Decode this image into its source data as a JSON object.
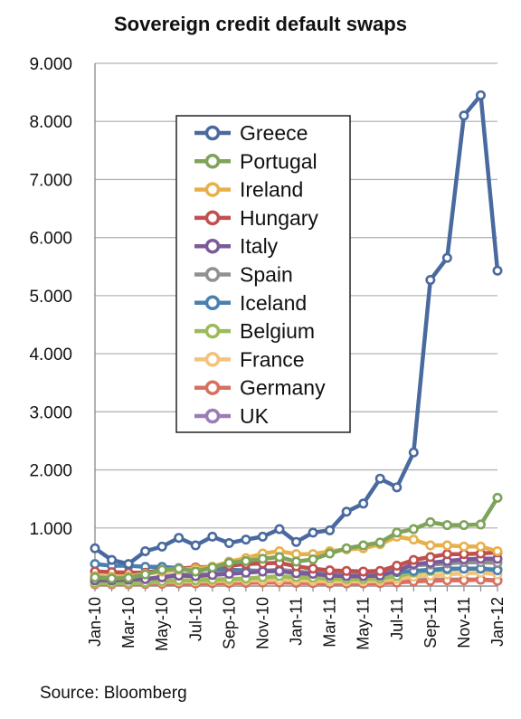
{
  "chart_data": {
    "type": "line",
    "title": "Sovereign credit default swaps",
    "xlabel": "",
    "ylabel": "",
    "source": "Source: Bloomberg",
    "ylim": [
      0,
      9000
    ],
    "yticks": [
      0,
      1000,
      2000,
      3000,
      4000,
      5000,
      6000,
      7000,
      8000,
      9000
    ],
    "ytick_labels": [
      "",
      "1.000",
      "2.000",
      "3.000",
      "4.000",
      "5.000",
      "6.000",
      "7.000",
      "8.000",
      "9.000"
    ],
    "x": [
      "Jan-10",
      "Feb-10",
      "Mar-10",
      "Apr-10",
      "May-10",
      "Jun-10",
      "Jul-10",
      "Aug-10",
      "Sep-10",
      "Oct-10",
      "Nov-10",
      "Dec-10",
      "Jan-11",
      "Feb-11",
      "Mar-11",
      "Apr-11",
      "May-11",
      "Jun-11",
      "Jul-11",
      "Aug-11",
      "Sep-11",
      "Oct-11",
      "Nov-11",
      "Dec-11",
      "Jan-12"
    ],
    "x_tick_labels": [
      "Jan-10",
      "Mar-10",
      "May-10",
      "Jul-10",
      "Sep-10",
      "Nov-10",
      "Jan-11",
      "Mar-11",
      "May-11",
      "Jul-11",
      "Sep-11",
      "Nov-11",
      "Jan-12"
    ],
    "grid": true,
    "legend_position": "top-left",
    "series": [
      {
        "name": "Greece",
        "color": "#4a6a9f",
        "values": [
          650,
          450,
          380,
          600,
          680,
          830,
          700,
          850,
          740,
          800,
          850,
          980,
          760,
          920,
          960,
          1280,
          1420,
          1850,
          1700,
          2300,
          5270,
          5650,
          8100,
          8450,
          5430
        ]
      },
      {
        "name": "Portugal",
        "color": "#7ea35a",
        "values": [
          150,
          130,
          140,
          200,
          280,
          300,
          250,
          320,
          400,
          430,
          470,
          500,
          420,
          460,
          560,
          650,
          700,
          750,
          920,
          980,
          1100,
          1050,
          1050,
          1060,
          1520
        ]
      },
      {
        "name": "Ireland",
        "color": "#e6b04a",
        "values": [
          170,
          160,
          170,
          210,
          250,
          280,
          300,
          330,
          420,
          480,
          560,
          600,
          550,
          550,
          600,
          630,
          650,
          720,
          850,
          800,
          700,
          700,
          680,
          680,
          600
        ]
      },
      {
        "name": "Hungary",
        "color": "#c0504d",
        "values": [
          250,
          240,
          230,
          230,
          280,
          300,
          320,
          330,
          350,
          380,
          390,
          400,
          340,
          300,
          270,
          260,
          250,
          260,
          350,
          450,
          500,
          550,
          550,
          560,
          580
        ]
      },
      {
        "name": "Italy",
        "color": "#7a5a98",
        "values": [
          100,
          100,
          110,
          120,
          150,
          180,
          170,
          190,
          210,
          230,
          250,
          260,
          220,
          210,
          180,
          170,
          170,
          180,
          260,
          380,
          400,
          430,
          460,
          470,
          470
        ]
      },
      {
        "name": "Spain",
        "color": "#909090",
        "values": [
          100,
          100,
          110,
          120,
          160,
          200,
          200,
          210,
          220,
          240,
          260,
          280,
          250,
          230,
          200,
          190,
          190,
          200,
          280,
          360,
          370,
          390,
          410,
          410,
          400
        ]
      },
      {
        "name": "Iceland",
        "color": "#4a7fb0",
        "values": [
          380,
          350,
          350,
          330,
          330,
          310,
          300,
          290,
          280,
          270,
          260,
          250,
          240,
          230,
          220,
          210,
          210,
          220,
          240,
          260,
          280,
          300,
          300,
          300,
          270
        ]
      },
      {
        "name": "Belgium",
        "color": "#9bbb59",
        "values": [
          50,
          50,
          50,
          60,
          80,
          100,
          100,
          110,
          120,
          130,
          150,
          170,
          150,
          140,
          130,
          120,
          120,
          130,
          170,
          230,
          260,
          280,
          300,
          300,
          290
        ]
      },
      {
        "name": "France",
        "color": "#f2c37a",
        "values": [
          50,
          50,
          50,
          60,
          70,
          80,
          80,
          90,
          90,
          100,
          100,
          110,
          100,
          90,
          80,
          80,
          80,
          90,
          120,
          160,
          180,
          200,
          220,
          230,
          200
        ]
      },
      {
        "name": "Germany",
        "color": "#d9705f",
        "values": [
          30,
          30,
          30,
          35,
          40,
          45,
          45,
          50,
          50,
          55,
          60,
          60,
          55,
          50,
          45,
          45,
          45,
          50,
          60,
          80,
          90,
          100,
          100,
          110,
          90
        ]
      },
      {
        "name": "UK",
        "color": "#9b7cb6",
        "values": [
          60,
          60,
          60,
          70,
          80,
          90,
          90,
          90,
          90,
          95,
          100,
          100,
          95,
          90,
          85,
          80,
          80,
          85,
          90,
          100,
          110,
          110,
          110,
          110,
          100
        ]
      }
    ]
  }
}
